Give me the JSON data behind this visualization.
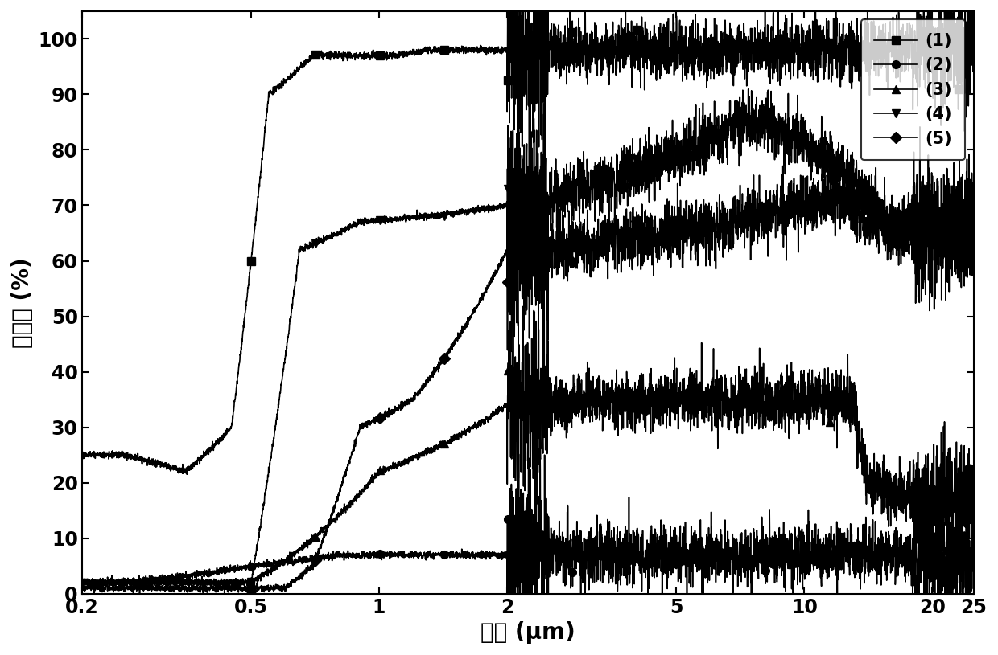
{
  "xlabel": "波长 (μm)",
  "ylabel": "反射率 (%)",
  "xlim": [
    0.2,
    25
  ],
  "ylim": [
    0,
    105
  ],
  "xticks": [
    0.2,
    0.5,
    1,
    2,
    5,
    10,
    20,
    25
  ],
  "xtick_labels": [
    "0.2",
    "0.5",
    "1",
    "2",
    "5",
    "10",
    "20",
    "25"
  ],
  "yticks": [
    0,
    10,
    20,
    30,
    40,
    50,
    60,
    70,
    80,
    90,
    100
  ],
  "legend_labels": [
    "(1)",
    "(2)",
    "(3)",
    "(4)",
    "(5)"
  ],
  "markers": [
    "s",
    "o",
    "^",
    "v",
    "D"
  ],
  "color": "#000000",
  "linewidth": 1.2,
  "markersize": 7,
  "tick_fontsize": 17,
  "label_fontsize": 20,
  "legend_fontsize": 15
}
